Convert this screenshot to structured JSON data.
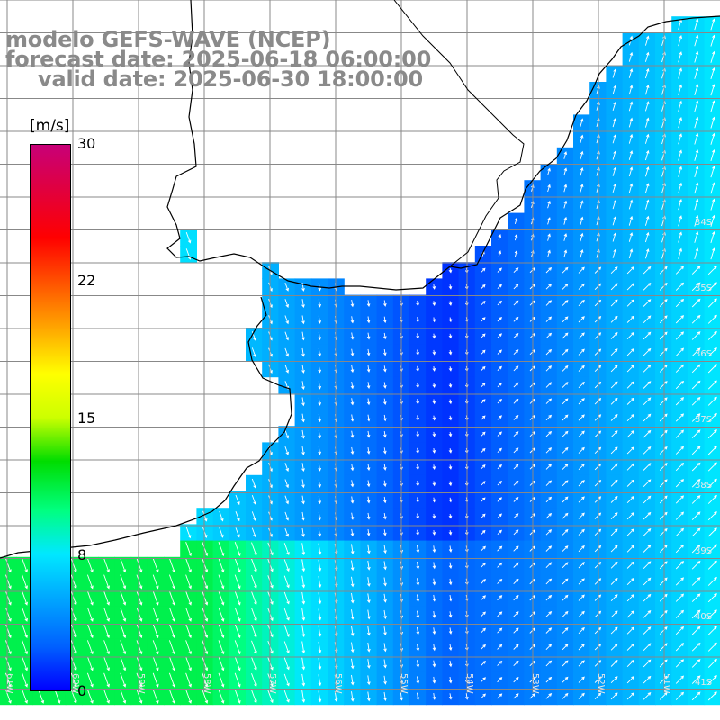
{
  "title": {
    "model": "modelo GEFS-WAVE (NCEP)",
    "forecast": "forecast date: 2025-06-18 06:00:00",
    "valid": "valid date: 2025-06-30 18:00:00"
  },
  "colorbar": {
    "unit": "[m/s]",
    "ticks": [
      "30",
      "22",
      "15",
      "8",
      "0"
    ],
    "colors": [
      "#0000ff",
      "#0060ff",
      "#00a8ff",
      "#00e8ff",
      "#00ff80",
      "#00dd00",
      "#ccff00",
      "#ffff00",
      "#ffa000",
      "#ff5000",
      "#ff0000",
      "#e00040",
      "#c80078"
    ]
  },
  "axes": {
    "lon_labels": [
      "61W",
      "60W",
      "59W",
      "58W",
      "57W",
      "56W",
      "55W",
      "54W",
      "53W",
      "52W",
      "51W"
    ],
    "lat_labels": [
      "34S",
      "35S",
      "36S",
      "37S",
      "38S",
      "39S",
      "40S",
      "41S"
    ]
  },
  "chart_data": {
    "type": "heatmap",
    "variable": "wind speed",
    "unit": "m/s",
    "value_range": [
      0,
      30
    ],
    "note": "wind speed field with white direction arrows",
    "lon_range": [
      -61,
      -51
    ],
    "lat_range": [
      -41,
      -34
    ]
  },
  "colors": {
    "grid": "#888888",
    "coast": "#000000",
    "arrow": "#ffffff"
  }
}
